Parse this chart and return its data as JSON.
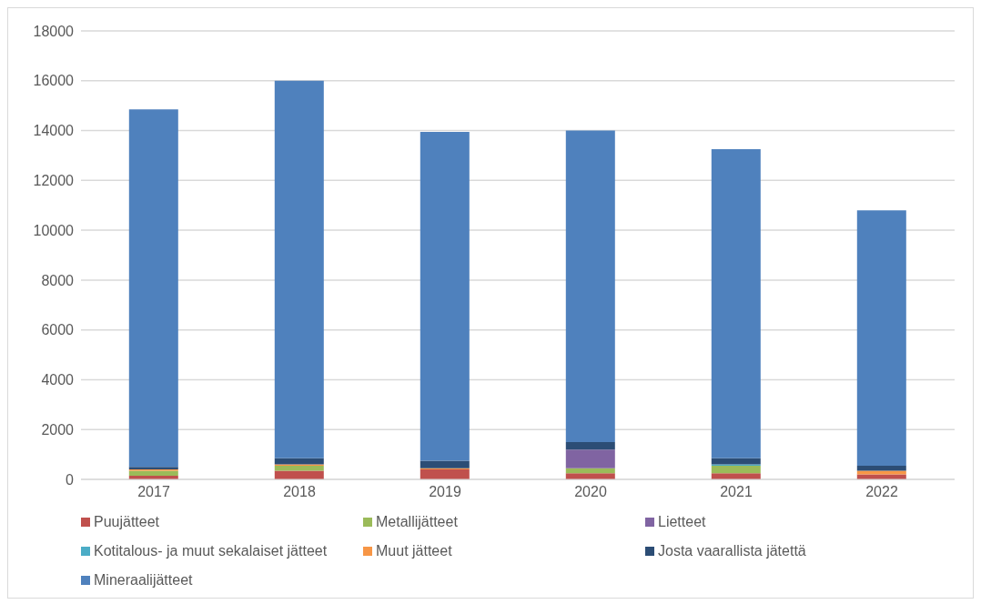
{
  "chart_data": {
    "type": "bar",
    "stacked": true,
    "categories": [
      "2017",
      "2018",
      "2019",
      "2020",
      "2021",
      "2022"
    ],
    "series": [
      {
        "name": "Puujätteet",
        "color": "#c0504d",
        "values": [
          150,
          350,
          400,
          250,
          250,
          200
        ]
      },
      {
        "name": "Metallijätteet",
        "color": "#9bbb59",
        "values": [
          200,
          200,
          0,
          200,
          300,
          0
        ]
      },
      {
        "name": "Lietteet",
        "color": "#8064a2",
        "values": [
          0,
          0,
          0,
          750,
          0,
          0
        ]
      },
      {
        "name": "Kotitalous- ja muut sekalaiset jätteet",
        "color": "#4bacc6",
        "values": [
          0,
          0,
          0,
          0,
          50,
          0
        ]
      },
      {
        "name": "Muut jätteet",
        "color": "#f79646",
        "values": [
          50,
          50,
          50,
          0,
          0,
          150
        ]
      },
      {
        "name": "Josta vaarallista jätettä",
        "color": "#2c4d75",
        "values": [
          100,
          250,
          300,
          300,
          250,
          200
        ]
      },
      {
        "name": "Mineraalijätteet",
        "color": "#4f81bd",
        "values": [
          14350,
          15150,
          13200,
          12500,
          12400,
          10250
        ]
      }
    ],
    "ylim": [
      0,
      18000
    ],
    "yticks": [
      0,
      2000,
      4000,
      6000,
      8000,
      10000,
      12000,
      14000,
      16000,
      18000
    ],
    "grid": "y",
    "legend": "bottom"
  }
}
